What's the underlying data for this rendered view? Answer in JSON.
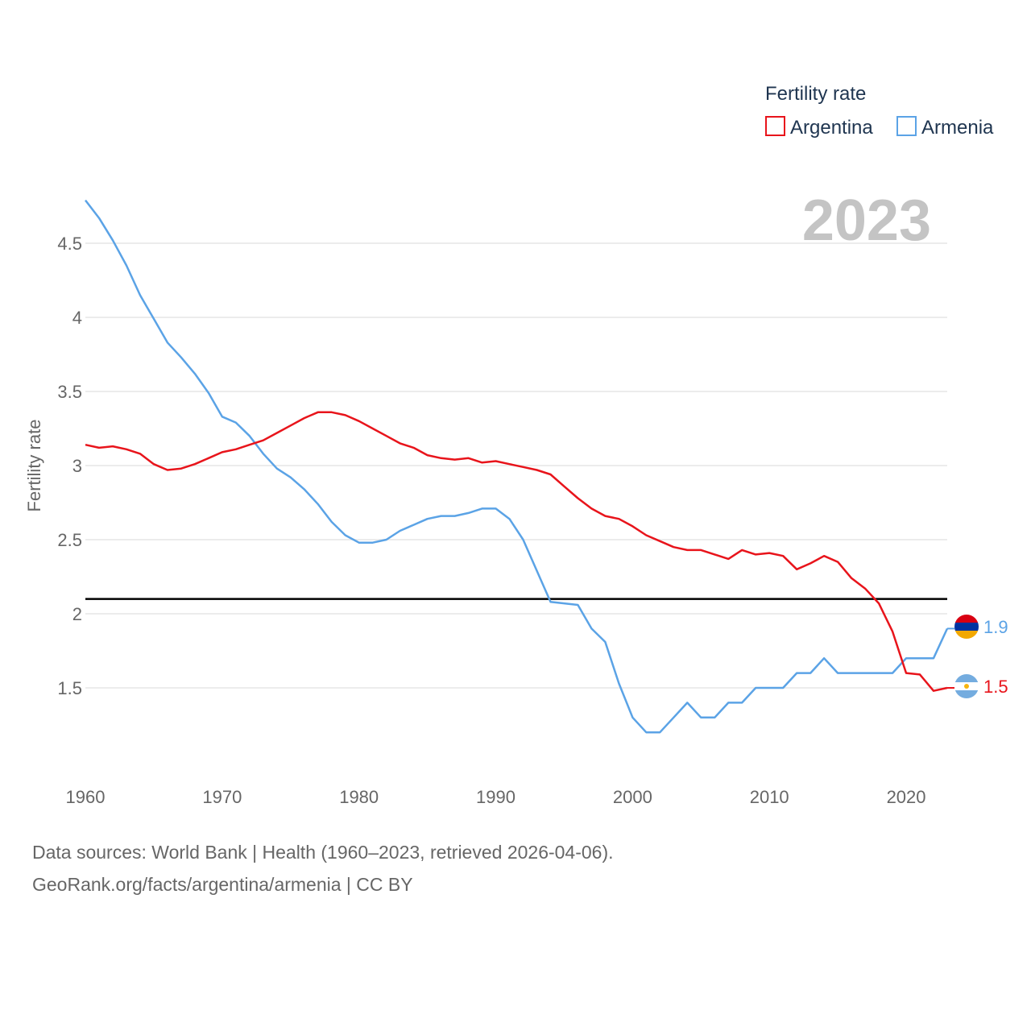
{
  "chart_data": {
    "type": "line",
    "title": "",
    "ylabel": "Fertility rate",
    "xlabel": "",
    "ylim": [
      0.95,
      4.9
    ],
    "xlim": [
      1960,
      2023
    ],
    "x_ticks": [
      1960,
      1970,
      1980,
      1990,
      2000,
      2010,
      2020
    ],
    "y_ticks": [
      1.5,
      2,
      2.5,
      3,
      3.5,
      4,
      4.5
    ],
    "y_tick_labels": [
      "1.5",
      "2",
      "2.5",
      "3",
      "3.5",
      "4",
      "4.5"
    ],
    "x_tick_labels": [
      "1960",
      "1970",
      "1980",
      "1990",
      "2000",
      "2010",
      "2020"
    ],
    "legend": {
      "title": "Fertility rate",
      "position": "top-right"
    },
    "year_label": "2023",
    "reference_line": {
      "value": 2.1,
      "color": "#000000"
    },
    "x": [
      1960,
      1961,
      1962,
      1963,
      1964,
      1965,
      1966,
      1967,
      1968,
      1969,
      1970,
      1971,
      1972,
      1973,
      1974,
      1975,
      1976,
      1977,
      1978,
      1979,
      1980,
      1981,
      1982,
      1983,
      1984,
      1985,
      1986,
      1987,
      1988,
      1989,
      1990,
      1991,
      1992,
      1993,
      1994,
      1995,
      1996,
      1997,
      1998,
      1999,
      2000,
      2001,
      2002,
      2003,
      2004,
      2005,
      2006,
      2007,
      2008,
      2009,
      2010,
      2011,
      2012,
      2013,
      2014,
      2015,
      2016,
      2017,
      2018,
      2019,
      2020,
      2021,
      2022,
      2023
    ],
    "series": [
      {
        "name": "Argentina",
        "color": "#e8141b",
        "end_label": "1.5",
        "flag": "argentina-flag",
        "values": [
          3.14,
          3.12,
          3.13,
          3.11,
          3.08,
          3.01,
          2.97,
          2.98,
          3.01,
          3.05,
          3.09,
          3.11,
          3.14,
          3.17,
          3.22,
          3.27,
          3.32,
          3.36,
          3.36,
          3.34,
          3.3,
          3.25,
          3.2,
          3.15,
          3.12,
          3.07,
          3.05,
          3.04,
          3.05,
          3.02,
          3.03,
          3.01,
          2.99,
          2.97,
          2.94,
          2.86,
          2.78,
          2.71,
          2.66,
          2.64,
          2.59,
          2.53,
          2.49,
          2.45,
          2.43,
          2.43,
          2.4,
          2.37,
          2.43,
          2.4,
          2.41,
          2.39,
          2.3,
          2.34,
          2.39,
          2.35,
          2.24,
          2.17,
          2.07,
          1.88,
          1.6,
          1.59,
          1.48,
          1.5
        ]
      },
      {
        "name": "Armenia",
        "color": "#5ba3e6",
        "end_label": "1.9",
        "flag": "armenia-flag",
        "values": [
          4.79,
          4.67,
          4.52,
          4.35,
          4.15,
          3.99,
          3.83,
          3.73,
          3.62,
          3.49,
          3.33,
          3.29,
          3.2,
          3.08,
          2.98,
          2.92,
          2.84,
          2.74,
          2.62,
          2.53,
          2.48,
          2.48,
          2.5,
          2.56,
          2.6,
          2.64,
          2.66,
          2.66,
          2.68,
          2.71,
          2.71,
          2.64,
          2.5,
          2.29,
          2.08,
          2.07,
          2.06,
          1.9,
          1.81,
          1.53,
          1.3,
          1.2,
          1.2,
          1.3,
          1.4,
          1.3,
          1.3,
          1.4,
          1.4,
          1.5,
          1.5,
          1.5,
          1.6,
          1.6,
          1.7,
          1.6,
          1.6,
          1.6,
          1.6,
          1.6,
          1.7,
          1.7,
          1.7,
          1.9
        ]
      }
    ]
  },
  "footer": {
    "line1": "Data sources: World Bank | Health (1960–2023, retrieved 2026-04-06).",
    "line2": "GeoRank.org/facts/argentina/armenia | CC BY"
  }
}
